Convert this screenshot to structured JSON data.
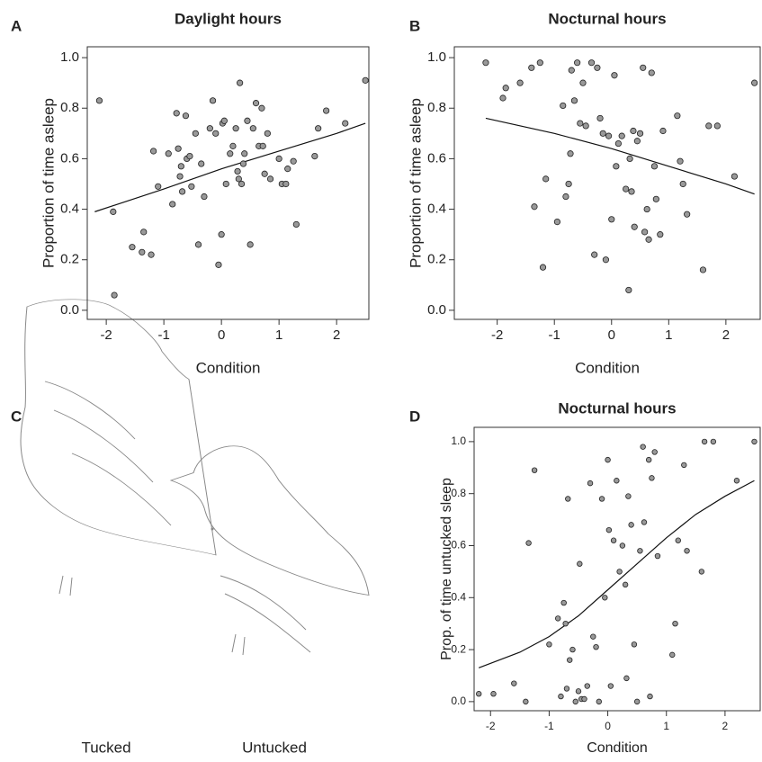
{
  "chart_data": [
    {
      "type": "scatter",
      "panel": "A",
      "title": "Daylight hours",
      "x_label": "Condition",
      "y_label": "Proportion of time asleep",
      "x": [
        -2.12,
        -1.88,
        -1.86,
        -1.55,
        -1.35,
        -1.38,
        -1.22,
        -1.18,
        -1.1,
        -0.92,
        -0.85,
        -0.78,
        -0.75,
        -0.72,
        -0.7,
        -0.68,
        -0.62,
        -0.6,
        -0.55,
        -0.52,
        -0.45,
        -0.4,
        -0.35,
        -0.3,
        -0.2,
        -0.15,
        -0.1,
        -0.05,
        0.0,
        0.02,
        0.05,
        0.08,
        0.15,
        0.2,
        0.25,
        0.28,
        0.3,
        0.32,
        0.35,
        0.38,
        0.4,
        0.45,
        0.5,
        0.55,
        0.6,
        0.65,
        0.7,
        0.72,
        0.75,
        0.8,
        0.85,
        1.0,
        1.05,
        1.12,
        1.15,
        1.25,
        1.3,
        1.62,
        1.68,
        1.82,
        2.15,
        2.5
      ],
      "values": [
        0.83,
        0.39,
        0.06,
        0.25,
        0.31,
        0.23,
        0.22,
        0.63,
        0.49,
        0.62,
        0.42,
        0.78,
        0.64,
        0.53,
        0.57,
        0.47,
        0.77,
        0.6,
        0.61,
        0.49,
        0.7,
        0.26,
        0.58,
        0.45,
        0.72,
        0.83,
        0.7,
        0.18,
        0.3,
        0.74,
        0.75,
        0.5,
        0.62,
        0.65,
        0.72,
        0.55,
        0.52,
        0.9,
        0.5,
        0.58,
        0.62,
        0.75,
        0.26,
        0.72,
        0.82,
        0.65,
        0.8,
        0.65,
        0.54,
        0.7,
        0.52,
        0.6,
        0.5,
        0.5,
        0.56,
        0.59,
        0.34,
        0.61,
        0.72,
        0.79,
        0.74,
        0.91
      ],
      "fit": {
        "x": [
          -2.2,
          -1,
          0,
          1,
          2,
          2.5
        ],
        "values": [
          0.39,
          0.48,
          0.56,
          0.63,
          0.7,
          0.74
        ]
      },
      "color": "#999999",
      "xlim": [
        -2.33,
        2.56
      ],
      "xticks": [
        -2,
        -1,
        0,
        1,
        2
      ],
      "ylim": [
        -0.036,
        1.043
      ],
      "yticks": [
        {
          "value": 0,
          "label": "0.0"
        },
        {
          "value": 0.2,
          "label": "0.2"
        },
        {
          "value": 0.4,
          "label": "0.4"
        },
        {
          "value": 0.6,
          "label": "0.6"
        },
        {
          "value": 0.8,
          "label": "0.8"
        },
        {
          "value": 1,
          "label": "1.0"
        }
      ]
    },
    {
      "type": "scatter",
      "panel": "B",
      "title": "Nocturnal hours",
      "x_label": "Condition",
      "y_label": "Proportion of time asleep",
      "x": [
        -2.2,
        -1.9,
        -1.85,
        -1.6,
        -1.4,
        -1.25,
        -1.35,
        -1.2,
        -1.15,
        -0.95,
        -0.85,
        -0.8,
        -0.75,
        -0.72,
        -0.7,
        -0.65,
        -0.6,
        -0.55,
        -0.5,
        -0.45,
        -0.35,
        -0.3,
        -0.25,
        -0.2,
        -0.15,
        -0.1,
        -0.05,
        0.0,
        0.05,
        0.08,
        0.12,
        0.18,
        0.25,
        0.3,
        0.32,
        0.35,
        0.38,
        0.4,
        0.45,
        0.5,
        0.55,
        0.58,
        0.62,
        0.65,
        0.7,
        0.75,
        0.78,
        0.85,
        0.9,
        1.15,
        1.2,
        1.25,
        1.32,
        1.6,
        1.7,
        1.85,
        2.15,
        2.5
      ],
      "values": [
        0.98,
        0.84,
        0.88,
        0.9,
        0.96,
        0.98,
        0.41,
        0.17,
        0.52,
        0.35,
        0.81,
        0.45,
        0.5,
        0.62,
        0.95,
        0.83,
        0.98,
        0.74,
        0.9,
        0.73,
        0.98,
        0.22,
        0.96,
        0.76,
        0.7,
        0.2,
        0.69,
        0.36,
        0.93,
        0.57,
        0.66,
        0.69,
        0.48,
        0.08,
        0.6,
        0.47,
        0.71,
        0.33,
        0.67,
        0.7,
        0.96,
        0.31,
        0.4,
        0.28,
        0.94,
        0.57,
        0.44,
        0.3,
        0.71,
        0.77,
        0.59,
        0.5,
        0.38,
        0.16,
        0.73,
        0.73,
        0.53,
        0.9
      ],
      "fit": {
        "x": [
          -2.2,
          -1,
          0,
          1,
          2,
          2.5
        ],
        "values": [
          0.76,
          0.7,
          0.64,
          0.57,
          0.5,
          0.46
        ]
      },
      "color": "#999999",
      "xlim": [
        -2.75,
        2.6
      ],
      "xticks": [
        -2,
        -1,
        0,
        1,
        2
      ],
      "ylim": [
        -0.036,
        1.043
      ],
      "yticks": [
        {
          "value": 0,
          "label": "0.0"
        },
        {
          "value": 0.2,
          "label": "0.2"
        },
        {
          "value": 0.4,
          "label": "0.4"
        },
        {
          "value": 0.6,
          "label": "0.6"
        },
        {
          "value": 0.8,
          "label": "0.8"
        },
        {
          "value": 1,
          "label": "1.0"
        }
      ]
    },
    {
      "type": "scatter",
      "panel": "D",
      "title": "Nocturnal hours",
      "x_label": "Condition",
      "y_label": "Prop. of time untucked sleep",
      "x": [
        -2.2,
        -1.95,
        -1.6,
        -1.35,
        -1.25,
        -1.4,
        -1.0,
        -0.85,
        -0.8,
        -0.75,
        -0.72,
        -0.7,
        -0.68,
        -0.65,
        -0.6,
        -0.55,
        -0.5,
        -0.48,
        -0.45,
        -0.4,
        -0.35,
        -0.3,
        -0.25,
        -0.2,
        -0.15,
        -0.1,
        -0.05,
        0.0,
        0.02,
        0.05,
        0.1,
        0.15,
        0.2,
        0.25,
        0.3,
        0.32,
        0.35,
        0.4,
        0.45,
        0.5,
        0.55,
        0.6,
        0.62,
        0.7,
        0.72,
        0.75,
        0.8,
        0.85,
        1.1,
        1.15,
        1.2,
        1.3,
        1.35,
        1.6,
        1.65,
        1.8,
        2.2,
        2.5
      ],
      "values": [
        0.03,
        0.03,
        0.07,
        0.61,
        0.89,
        0.0,
        0.22,
        0.32,
        0.02,
        0.38,
        0.3,
        0.05,
        0.78,
        0.16,
        0.2,
        0.0,
        0.04,
        0.53,
        0.01,
        0.01,
        0.06,
        0.84,
        0.25,
        0.21,
        0.0,
        0.78,
        0.4,
        0.93,
        0.66,
        0.06,
        0.62,
        0.85,
        0.5,
        0.6,
        0.45,
        0.09,
        0.79,
        0.68,
        0.22,
        0.0,
        0.58,
        0.98,
        0.69,
        0.93,
        0.02,
        0.86,
        0.96,
        0.56,
        0.18,
        0.3,
        0.62,
        0.91,
        0.58,
        0.5,
        1.0,
        1.0,
        0.85,
        1.0
      ],
      "fit": {
        "x": [
          -2.2,
          -1.5,
          -1,
          -0.5,
          0,
          0.5,
          1,
          1.5,
          2,
          2.5
        ],
        "values": [
          0.13,
          0.19,
          0.25,
          0.33,
          0.43,
          0.53,
          0.63,
          0.72,
          0.79,
          0.85
        ]
      },
      "color": "#999999",
      "xlim": [
        -2.28,
        2.6
      ],
      "xticks": [
        -2,
        -1,
        0,
        1,
        2
      ],
      "ylim": [
        -0.035,
        1.055
      ],
      "yticks": [
        {
          "value": 0,
          "label": "0.0"
        },
        {
          "value": 0.2,
          "label": "0.2"
        },
        {
          "value": 0.4,
          "label": "0.4"
        },
        {
          "value": 0.6,
          "label": "0.6"
        },
        {
          "value": 0.8,
          "label": "0.8"
        },
        {
          "value": 1,
          "label": "1.0"
        }
      ]
    }
  ],
  "illustration": {
    "panel": "C",
    "labels": [
      "Tucked",
      "Untucked"
    ]
  }
}
